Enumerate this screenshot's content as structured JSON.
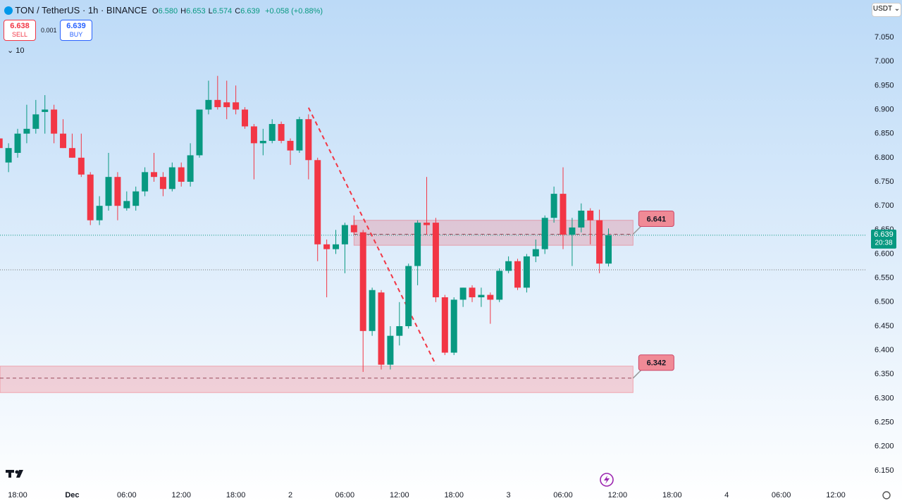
{
  "toolbar": {
    "symbol": "TON / TetherUS · 1h · BINANCE",
    "ohlc": [
      [
        "O",
        "6.580"
      ],
      [
        "H",
        "6.653"
      ],
      [
        "L",
        "6.574"
      ],
      [
        "C",
        "6.639"
      ]
    ],
    "change": "+0.058 (+0.88%)",
    "sell_price": "6.638",
    "sell": "SELL",
    "spread": "0.001",
    "buy_price": "6.639",
    "buy": "BUY",
    "indicators": "10",
    "currency": "USDT"
  },
  "chart_data": {
    "type": "candlestick",
    "x": [
      -2,
      -1,
      0,
      1,
      2,
      3,
      4,
      5,
      6,
      7,
      8,
      9,
      10,
      11,
      12,
      13,
      14,
      15,
      16,
      17,
      18,
      19,
      20,
      21,
      22,
      23,
      24,
      25,
      26,
      27,
      28,
      29,
      30,
      31,
      32,
      33,
      34,
      35,
      36,
      37,
      38,
      39,
      40,
      41,
      42,
      43,
      44,
      45,
      46,
      47,
      48,
      49,
      50,
      51,
      52,
      53,
      54,
      55,
      56,
      57,
      58,
      59,
      60,
      61,
      62,
      63,
      64,
      65
    ],
    "open": [
      6.84,
      6.79,
      6.81,
      6.85,
      6.86,
      6.895,
      6.9,
      6.85,
      6.82,
      6.8,
      6.765,
      6.67,
      6.7,
      6.76,
      6.695,
      6.7,
      6.73,
      6.77,
      6.76,
      6.735,
      6.78,
      6.75,
      6.805,
      6.9,
      6.92,
      6.915,
      6.915,
      6.9,
      6.865,
      6.83,
      6.835,
      6.87,
      6.835,
      6.815,
      6.88,
      6.795,
      6.62,
      6.61,
      6.62,
      6.66,
      6.645,
      6.44,
      6.52,
      6.37,
      6.43,
      6.45,
      6.575,
      6.665,
      6.665,
      6.51,
      6.395,
      6.505,
      6.53,
      6.51,
      6.515,
      6.505,
      6.565,
      6.585,
      6.53,
      6.595,
      6.61,
      6.675,
      6.725,
      6.64,
      6.655,
      6.69,
      6.67,
      6.58
    ],
    "high": [
      6.85,
      6.83,
      6.86,
      6.91,
      6.92,
      6.93,
      6.91,
      6.88,
      6.85,
      6.85,
      6.77,
      6.72,
      6.81,
      6.77,
      6.73,
      6.74,
      6.78,
      6.81,
      6.77,
      6.79,
      6.79,
      6.83,
      6.9,
      6.96,
      6.97,
      6.96,
      6.95,
      6.905,
      6.87,
      6.86,
      6.88,
      6.875,
      6.84,
      6.885,
      6.89,
      6.8,
      6.63,
      6.65,
      6.665,
      6.68,
      6.65,
      6.53,
      6.525,
      6.45,
      6.5,
      6.58,
      6.67,
      6.76,
      6.675,
      6.515,
      6.51,
      6.53,
      6.535,
      6.53,
      6.52,
      6.57,
      6.595,
      6.59,
      6.6,
      6.63,
      6.68,
      6.74,
      6.78,
      6.675,
      6.705,
      6.695,
      6.692,
      6.653
    ],
    "low": [
      6.82,
      6.77,
      6.8,
      6.83,
      6.85,
      6.85,
      6.83,
      6.82,
      6.8,
      6.76,
      6.66,
      6.66,
      6.69,
      6.67,
      6.69,
      6.69,
      6.72,
      6.75,
      6.72,
      6.73,
      6.74,
      6.74,
      6.8,
      6.89,
      6.9,
      6.88,
      6.89,
      6.86,
      6.755,
      6.805,
      6.83,
      6.83,
      6.785,
      6.81,
      6.755,
      6.585,
      6.51,
      6.6,
      6.56,
      6.64,
      6.355,
      6.43,
      6.36,
      6.36,
      6.41,
      6.445,
      6.535,
      6.64,
      6.5,
      6.39,
      6.39,
      6.49,
      6.5,
      6.49,
      6.455,
      6.5,
      6.56,
      6.525,
      6.52,
      6.583,
      6.6,
      6.665,
      6.61,
      6.575,
      6.645,
      6.62,
      6.56,
      6.574
    ],
    "close": [
      6.82,
      6.82,
      6.85,
      6.86,
      6.89,
      6.9,
      6.85,
      6.82,
      6.8,
      6.765,
      6.67,
      6.7,
      6.76,
      6.7,
      6.71,
      6.73,
      6.77,
      6.76,
      6.735,
      6.78,
      6.75,
      6.805,
      6.9,
      6.92,
      6.905,
      6.905,
      6.9,
      6.865,
      6.83,
      6.835,
      6.87,
      6.835,
      6.815,
      6.88,
      6.795,
      6.62,
      6.61,
      6.62,
      6.66,
      6.645,
      6.44,
      6.525,
      6.37,
      6.43,
      6.45,
      6.575,
      6.665,
      6.66,
      6.51,
      6.395,
      6.505,
      6.53,
      6.51,
      6.515,
      6.505,
      6.565,
      6.585,
      6.53,
      6.595,
      6.61,
      6.675,
      6.725,
      6.64,
      6.655,
      6.69,
      6.67,
      6.58,
      6.639
    ],
    "up_color": "#089981",
    "down_color": "#f23645",
    "xlim": [
      -1.94,
      93.41
    ],
    "ylim": [
      6.1207,
      7.1276
    ],
    "xticks": [
      {
        "value": 0,
        "label": "18:00"
      },
      {
        "value": 6,
        "label": "Dec"
      },
      {
        "value": 12,
        "label": "06:00"
      },
      {
        "value": 18,
        "label": "12:00"
      },
      {
        "value": 24,
        "label": "18:00"
      },
      {
        "value": 30,
        "label": "2"
      },
      {
        "value": 36,
        "label": "06:00"
      },
      {
        "value": 42,
        "label": "12:00"
      },
      {
        "value": 48,
        "label": "18:00"
      },
      {
        "value": 54,
        "label": "3"
      },
      {
        "value": 60,
        "label": "06:00"
      },
      {
        "value": 66,
        "label": "12:00"
      },
      {
        "value": 72,
        "label": "18:00"
      },
      {
        "value": 78,
        "label": "4"
      },
      {
        "value": 84,
        "label": "06:00"
      },
      {
        "value": 90,
        "label": "12:00"
      }
    ],
    "yticks": [
      {
        "value": 6.15,
        "label": "6.150"
      },
      {
        "value": 6.2,
        "label": "6.200"
      },
      {
        "value": 6.25,
        "label": "6.250"
      },
      {
        "value": 6.3,
        "label": "6.300"
      },
      {
        "value": 6.35,
        "label": "6.350"
      },
      {
        "value": 6.4,
        "label": "6.400"
      },
      {
        "value": 6.45,
        "label": "6.450"
      },
      {
        "value": 6.5,
        "label": "6.500"
      },
      {
        "value": 6.55,
        "label": "6.550"
      },
      {
        "value": 6.6,
        "label": "6.600"
      },
      {
        "value": 6.65,
        "label": "6.650"
      },
      {
        "value": 6.7,
        "label": "6.700"
      },
      {
        "value": 6.75,
        "label": "6.750"
      },
      {
        "value": 6.8,
        "label": "6.800"
      },
      {
        "value": 6.85,
        "label": "6.850"
      },
      {
        "value": 6.9,
        "label": "6.900"
      },
      {
        "value": 6.95,
        "label": "6.950"
      },
      {
        "value": 7.0,
        "label": "7.000"
      },
      {
        "value": 7.05,
        "label": "7.050"
      }
    ],
    "zones": [
      {
        "from_x": 37,
        "to_x": 67.7,
        "low": 6.618,
        "high": 6.67,
        "level": 6.641,
        "label": "6.641"
      },
      {
        "from_x": -1.94,
        "to_x": 67.7,
        "low": 6.312,
        "high": 6.367,
        "level": 6.342,
        "label": "6.342"
      }
    ],
    "trend_line": {
      "x": [
        32,
        46
      ],
      "y": [
        6.904,
        6.37
      ]
    },
    "reference_line": 6.567,
    "last_price": {
      "value": 6.639,
      "label": "6.639",
      "countdown": "20:38"
    }
  }
}
